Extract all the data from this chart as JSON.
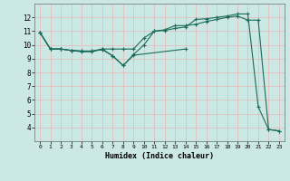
{
  "title": "",
  "xlabel": "Humidex (Indice chaleur)",
  "bg_color": "#cce8e4",
  "grid_color": "#e8b8b8",
  "line_color": "#1a6b5a",
  "xlim": [
    -0.5,
    23.5
  ],
  "ylim": [
    3,
    13
  ],
  "yticks": [
    4,
    5,
    6,
    7,
    8,
    9,
    10,
    11,
    12
  ],
  "xticks": [
    0,
    1,
    2,
    3,
    4,
    5,
    6,
    7,
    8,
    9,
    10,
    11,
    12,
    13,
    14,
    15,
    16,
    17,
    18,
    19,
    20,
    21,
    22,
    23
  ],
  "line1_x": [
    0,
    1,
    2,
    3,
    4,
    5,
    6,
    7,
    8,
    9,
    10,
    11,
    12,
    13,
    14,
    15,
    16,
    17,
    18,
    19,
    20,
    21,
    22,
    23
  ],
  "line1_y": [
    10.9,
    9.7,
    9.7,
    9.6,
    9.5,
    9.5,
    9.7,
    9.2,
    8.5,
    9.3,
    10.0,
    11.0,
    11.05,
    11.2,
    11.3,
    11.85,
    11.9,
    12.0,
    12.1,
    12.25,
    12.25,
    5.5,
    3.85,
    3.75
  ],
  "line2_x": [
    0,
    1,
    2,
    3,
    4,
    5,
    6,
    7,
    8,
    9,
    10,
    11,
    12,
    13,
    14,
    15,
    16,
    17,
    18,
    19,
    20,
    21,
    22,
    23
  ],
  "line2_y": [
    10.9,
    9.7,
    9.7,
    9.6,
    9.55,
    9.55,
    9.7,
    9.7,
    9.7,
    9.7,
    10.5,
    11.0,
    11.1,
    11.4,
    11.4,
    11.5,
    11.7,
    11.85,
    12.0,
    12.1,
    11.8,
    11.8,
    3.85,
    3.75
  ],
  "line3_x": [
    0,
    1,
    2,
    3,
    4,
    5,
    6,
    7,
    8,
    9,
    14
  ],
  "line3_y": [
    10.9,
    9.7,
    9.7,
    9.6,
    9.55,
    9.55,
    9.65,
    9.2,
    8.5,
    9.25,
    9.7
  ]
}
